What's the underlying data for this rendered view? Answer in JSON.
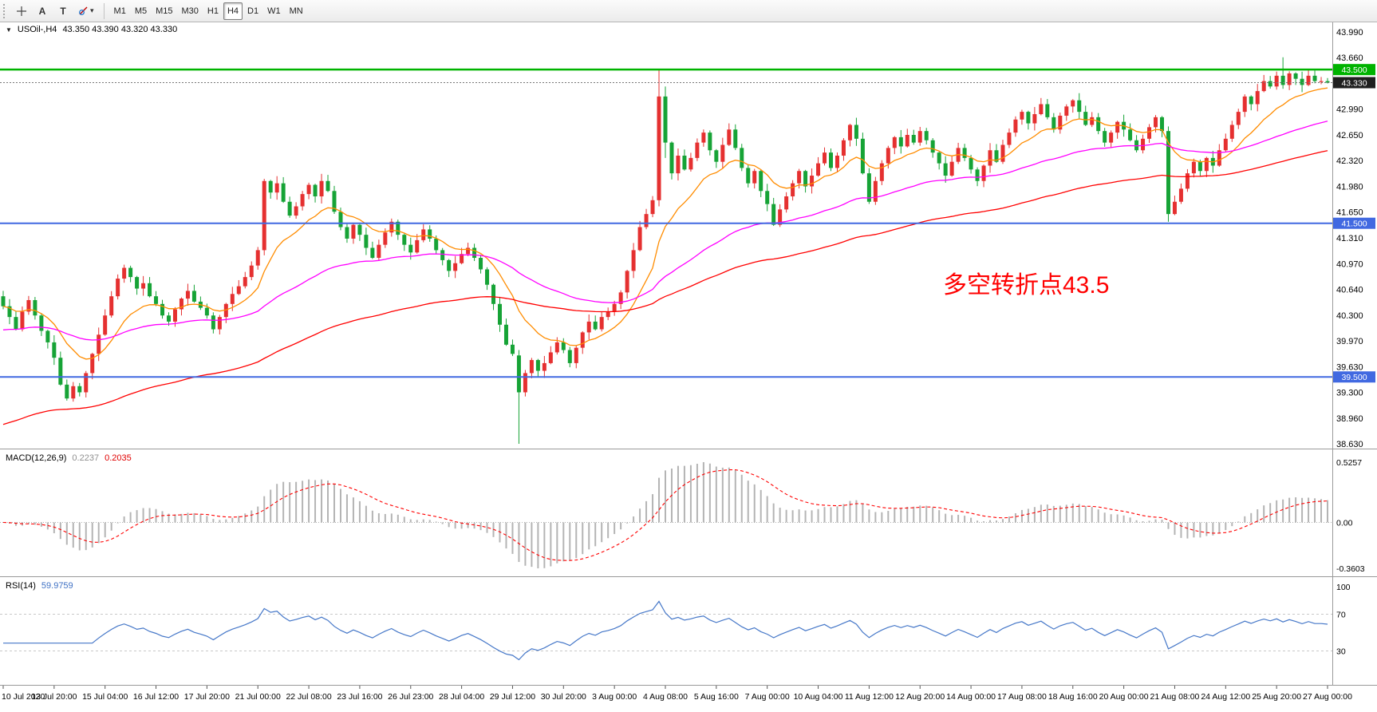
{
  "toolbar": {
    "text_tool": "A",
    "t_tool": "T",
    "dropdown_chevron": "▾",
    "timeframes": [
      {
        "label": "M1",
        "active": false
      },
      {
        "label": "M5",
        "active": false
      },
      {
        "label": "M15",
        "active": false
      },
      {
        "label": "M30",
        "active": false
      },
      {
        "label": "H1",
        "active": false
      },
      {
        "label": "H4",
        "active": true
      },
      {
        "label": "D1",
        "active": false
      },
      {
        "label": "W1",
        "active": false
      },
      {
        "label": "MN",
        "active": false
      }
    ]
  },
  "main_chart": {
    "title": "USOil-,H4",
    "ohlc_display": "43.350 43.390 43.320 43.330"
  },
  "chart_data": {
    "type": "candlestick",
    "symbol": "USOil-",
    "timeframe": "H4",
    "ohlc_current": {
      "open": 43.35,
      "high": 43.39,
      "low": 43.32,
      "close": 43.33
    },
    "price_axis": [
      "43.990",
      "43.660",
      "43.330",
      "42.990",
      "42.650",
      "42.320",
      "41.980",
      "41.650",
      "41.310",
      "40.970",
      "40.640",
      "40.300",
      "39.970",
      "39.630",
      "39.300",
      "38.960",
      "38.630"
    ],
    "price_range": [
      38.63,
      43.99
    ],
    "time_axis": [
      "10 Jul 2020",
      "13 Jul 20:00",
      "15 Jul 04:00",
      "16 Jul 12:00",
      "17 Jul 20:00",
      "21 Jul 00:00",
      "22 Jul 08:00",
      "23 Jul 16:00",
      "26 Jul 23:00",
      "28 Jul 04:00",
      "29 Jul 12:00",
      "30 Jul 20:00",
      "3 Aug 00:00",
      "4 Aug 08:00",
      "5 Aug 16:00",
      "7 Aug 00:00",
      "10 Aug 04:00",
      "11 Aug 12:00",
      "12 Aug 20:00",
      "14 Aug 00:00",
      "17 Aug 08:00",
      "18 Aug 16:00",
      "20 Aug 00:00",
      "21 Aug 08:00",
      "24 Aug 12:00",
      "25 Aug 20:00",
      "27 Aug 00:00"
    ],
    "bars_per_label": 8,
    "open_first": 40.55,
    "closes": [
      40.42,
      40.28,
      40.12,
      40.35,
      40.5,
      40.3,
      40.1,
      39.95,
      39.75,
      39.4,
      39.22,
      39.38,
      39.3,
      39.55,
      39.8,
      40.05,
      40.3,
      40.55,
      40.78,
      40.92,
      40.8,
      40.65,
      40.72,
      40.55,
      40.45,
      40.3,
      40.22,
      40.38,
      40.52,
      40.62,
      40.48,
      40.4,
      40.3,
      40.12,
      40.28,
      40.45,
      40.58,
      40.68,
      40.8,
      40.95,
      41.15,
      42.05,
      41.9,
      42.02,
      41.78,
      41.6,
      41.72,
      41.88,
      42.0,
      41.85,
      42.05,
      41.92,
      41.65,
      41.45,
      41.3,
      41.48,
      41.35,
      41.18,
      41.05,
      41.22,
      41.38,
      41.52,
      41.35,
      41.22,
      41.12,
      41.28,
      41.42,
      41.3,
      41.15,
      41.02,
      40.88,
      40.98,
      41.1,
      41.18,
      41.05,
      40.9,
      40.7,
      40.45,
      40.18,
      39.92,
      39.8,
      39.3,
      39.55,
      39.72,
      39.58,
      39.68,
      39.82,
      39.95,
      39.85,
      39.68,
      39.88,
      40.08,
      40.22,
      40.12,
      40.28,
      40.35,
      40.45,
      40.6,
      40.88,
      41.15,
      41.45,
      41.62,
      41.8,
      43.15,
      42.55,
      42.15,
      42.38,
      42.2,
      42.35,
      42.55,
      42.68,
      42.45,
      42.3,
      42.52,
      42.72,
      42.48,
      42.22,
      42.02,
      42.18,
      41.92,
      41.75,
      41.48,
      41.68,
      41.85,
      42.02,
      42.18,
      41.98,
      42.12,
      42.28,
      42.42,
      42.22,
      42.38,
      42.58,
      42.78,
      42.6,
      42.15,
      41.78,
      42.05,
      42.28,
      42.48,
      42.62,
      42.5,
      42.65,
      42.55,
      42.7,
      42.58,
      42.42,
      42.28,
      42.12,
      42.3,
      42.48,
      42.35,
      42.2,
      42.05,
      42.25,
      42.45,
      42.3,
      42.52,
      42.68,
      42.85,
      42.95,
      42.8,
      42.92,
      43.05,
      42.88,
      42.72,
      42.9,
      43.02,
      43.1,
      42.95,
      42.78,
      42.88,
      42.7,
      42.55,
      42.68,
      42.82,
      42.72,
      42.58,
      42.45,
      42.6,
      42.75,
      42.88,
      42.7,
      41.62,
      41.78,
      41.95,
      42.15,
      42.3,
      42.18,
      42.35,
      42.25,
      42.45,
      42.6,
      42.78,
      42.95,
      43.15,
      43.05,
      43.22,
      43.35,
      43.28,
      43.42,
      43.3,
      43.45,
      43.38,
      43.3,
      43.42,
      43.35,
      43.35,
      43.33
    ],
    "key_candles": {
      "0": [
        40.55,
        40.62,
        40.38,
        40.42
      ],
      "81": [
        39.78,
        39.85,
        38.63,
        39.3
      ],
      "103": [
        41.8,
        43.5,
        41.72,
        43.15
      ],
      "104": [
        43.15,
        43.28,
        42.35,
        42.55
      ],
      "183": [
        42.7,
        42.76,
        41.52,
        41.62
      ],
      "201": [
        43.42,
        43.66,
        43.25,
        43.3
      ],
      "208": [
        43.35,
        43.39,
        43.32,
        43.33
      ]
    },
    "up_color": "#e53030",
    "down_color": "#16a336",
    "moving_averages": [
      {
        "name": "fast",
        "color": "#ff8c00",
        "period": 12,
        "seed": null
      },
      {
        "name": "medium",
        "color": "#ff00ff",
        "period": 50,
        "seed": 40.1
      },
      {
        "name": "slow",
        "color": "#ff0000",
        "period": 100,
        "seed": 38.85
      }
    ],
    "hlines": [
      {
        "price": 43.5,
        "color": "#00b300",
        "label": "43.500",
        "width": 2.5
      },
      {
        "price": 41.5,
        "color": "#4169e1",
        "label": "41.500",
        "width": 2
      },
      {
        "price": 39.5,
        "color": "#4169e1",
        "label": "39.500",
        "width": 2
      }
    ],
    "current_price": {
      "value": 43.33,
      "label": "43.330",
      "color": "#1f1f1f"
    },
    "annotation": {
      "text": "多空转折点43.5",
      "color": "#ff0000",
      "x_frac": 0.685,
      "price": 40.75
    },
    "macd": {
      "label": "MACD(12,26,9)",
      "main_value": "0.2237",
      "signal_value": "0.2035",
      "fast": 12,
      "slow": 26,
      "signal": 9,
      "axis": [
        "0.5257",
        "0.00",
        "-0.3603"
      ],
      "hist_color": "#b4b4b4",
      "signal_color": "#ff0000"
    },
    "rsi": {
      "label": "RSI(14)",
      "value_display": "59.9759",
      "period": 14,
      "axis": [
        "100",
        "70",
        "30"
      ],
      "levels": [
        70,
        30
      ],
      "line_color": "#4577c8",
      "level_color": "#c8c8c8"
    }
  }
}
